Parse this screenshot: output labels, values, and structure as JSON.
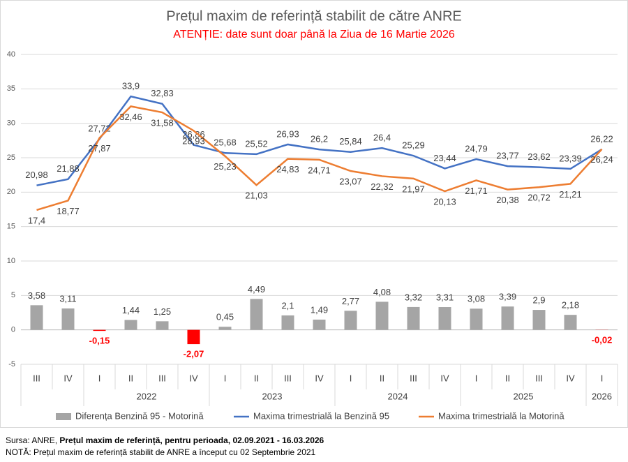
{
  "chart_data": {
    "type": "bar-line",
    "title": "Prețul maxim de referință stabilit de către ANRE",
    "subtitle": "ATENȚIE: date sunt doar până la Ziua de 16 Martie 2026",
    "categories": [
      "III",
      "IV",
      "I",
      "II",
      "III",
      "IV",
      "I",
      "II",
      "III",
      "IV",
      "I",
      "II",
      "III",
      "IV",
      "I",
      "II",
      "III",
      "IV",
      "I"
    ],
    "groups": [
      {
        "name": null,
        "count": 2
      },
      {
        "name": "2022",
        "count": 4
      },
      {
        "name": "2023",
        "count": 4
      },
      {
        "name": "2024",
        "count": 4
      },
      {
        "name": "2025",
        "count": 4
      },
      {
        "name": "2026",
        "count": 1
      }
    ],
    "series": [
      {
        "name": "Diferența Benzină 95 - Motorină",
        "type": "bar",
        "color": "#a5a5a5",
        "negative_color": "#ff0000",
        "values": [
          3.58,
          3.11,
          -0.15,
          1.44,
          1.25,
          -2.07,
          0.45,
          4.49,
          2.1,
          1.49,
          2.77,
          4.08,
          3.32,
          3.31,
          3.08,
          3.39,
          2.9,
          2.18,
          -0.02
        ],
        "value_labels": [
          "3,58",
          "3,11",
          "-0,15",
          "1,44",
          "1,25",
          "-2,07",
          "0,45",
          "4,49",
          "2,1",
          "1,49",
          "2,77",
          "4,08",
          "3,32",
          "3,31",
          "3,08",
          "3,39",
          "2,9",
          "2,18",
          "-0,02"
        ]
      },
      {
        "name": "Maxima trimestrială la Benzină 95",
        "type": "line",
        "color": "#4472c4",
        "values": [
          20.98,
          21.88,
          27.72,
          33.9,
          32.83,
          26.86,
          25.68,
          25.52,
          26.93,
          26.2,
          25.84,
          26.4,
          25.29,
          23.44,
          24.79,
          23.77,
          23.62,
          23.39,
          26.22
        ],
        "value_labels": [
          "20,98",
          "21,88",
          "27,72",
          "33,9",
          "32,83",
          "26,86",
          "25,68",
          "25,52",
          "26,93",
          "26,2",
          "25,84",
          "26,4",
          "25,29",
          "23,44",
          "24,79",
          "23,77",
          "23,62",
          "23,39",
          "26,22"
        ]
      },
      {
        "name": "Maxima trimestrială la Motorină",
        "type": "line",
        "color": "#ed7d31",
        "values": [
          17.4,
          18.77,
          27.87,
          32.46,
          31.58,
          28.93,
          25.23,
          21.03,
          24.83,
          24.71,
          23.07,
          22.32,
          21.97,
          20.13,
          21.71,
          20.38,
          20.72,
          21.21,
          26.24
        ],
        "value_labels": [
          "17,4",
          "18,77",
          "27,87",
          "32,46",
          "31,58",
          "28,93",
          "25,23",
          "21,03",
          "24,83",
          "24,71",
          "23,07",
          "22,32",
          "21,97",
          "20,13",
          "21,71",
          "20,38",
          "20,72",
          "21,21",
          "26,24"
        ]
      }
    ],
    "ylim": [
      -5,
      40
    ],
    "yticks": [
      -5,
      0,
      5,
      10,
      15,
      20,
      25,
      30,
      35,
      40
    ],
    "grid": true,
    "legend": "bottom"
  },
  "footer": {
    "source_prefix": "Sursa: ANRE,",
    "source_bold": "Prețul maxim de referință, pentru perioada, 02.09.2021 - 16.03.2026",
    "note": "NOTĂ:  Prețul maxim de referință stabilit de ANRE a început cu 02 Septembrie 2021"
  }
}
